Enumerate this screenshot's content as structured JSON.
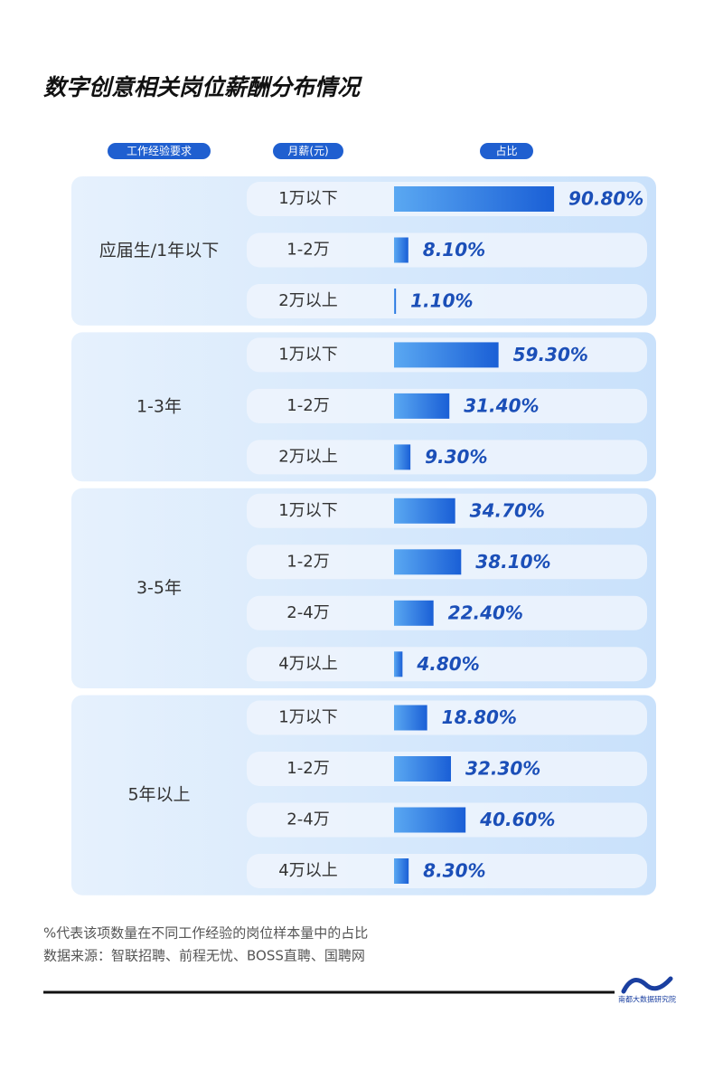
{
  "chart_data": {
    "type": "bar",
    "title": "数字创意相关岗位薪酬分布情况",
    "column_headers": [
      "工作经验要求",
      "月薪(元)",
      "占比"
    ],
    "xlim": [
      0,
      100
    ],
    "color": "#1a5fd6",
    "groups": [
      {
        "name": "应届生/1年以下",
        "categories": [
          "1万以下",
          "1-2万",
          "2万以上"
        ],
        "values": [
          90.8,
          8.1,
          1.1
        ],
        "value_labels": [
          "90.80%",
          "8.10%",
          "1.10%"
        ]
      },
      {
        "name": "1-3年",
        "categories": [
          "1万以下",
          "1-2万",
          "2万以上"
        ],
        "values": [
          59.3,
          31.4,
          9.3
        ],
        "value_labels": [
          "59.30%",
          "31.40%",
          "9.30%"
        ]
      },
      {
        "name": "3-5年",
        "categories": [
          "1万以下",
          "1-2万",
          "2-4万",
          "4万以上"
        ],
        "values": [
          34.7,
          38.1,
          22.4,
          4.8
        ],
        "value_labels": [
          "34.70%",
          "38.10%",
          "22.40%",
          "4.80%"
        ]
      },
      {
        "name": "5年以上",
        "categories": [
          "1万以下",
          "1-2万",
          "2-4万",
          "4万以上"
        ],
        "values": [
          18.8,
          32.3,
          40.6,
          8.3
        ],
        "value_labels": [
          "18.80%",
          "32.30%",
          "40.60%",
          "8.30%"
        ]
      }
    ]
  },
  "footer": {
    "notes": [
      "%代表该项数量在不同工作经验的岗位样本量中的占比",
      "数据来源：智联招聘、前程无忧、BOSS直聘、国聘网"
    ],
    "logo": "南都大数据研究院"
  }
}
